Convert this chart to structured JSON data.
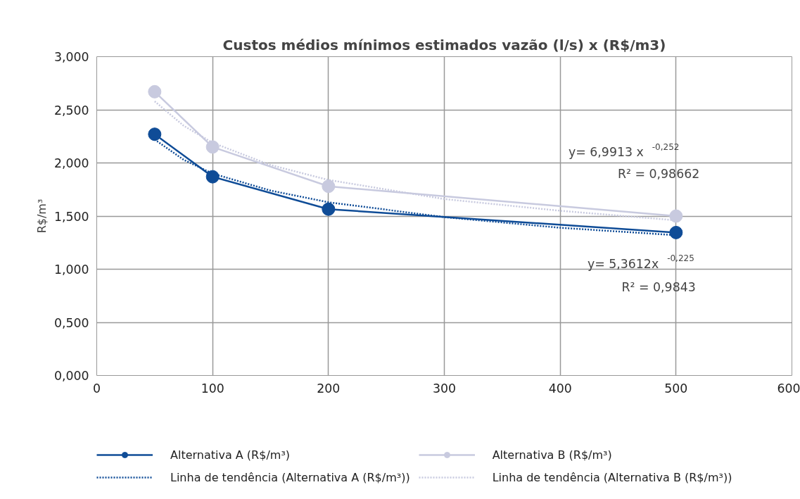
{
  "chart_data": {
    "type": "line",
    "title": "Custos médios mínimos estimados vazão (l/s) x (R$/m3)",
    "ylabel": "R$/m³",
    "x": [
      50,
      100,
      200,
      500
    ],
    "series": [
      {
        "name": "Alternativa A (R$/m³)",
        "color": "#0f4c97",
        "values": [
          2.27,
          1.87,
          1.565,
          1.345
        ],
        "marker": "circle",
        "line_style": "solid"
      },
      {
        "name": "Alternativa B (R$/m³)",
        "color": "#c8cadf",
        "values": [
          2.67,
          2.15,
          1.78,
          1.5
        ],
        "marker": "circle",
        "line_style": "solid"
      },
      {
        "name": "Linha de tendência (Alternativa A (R$/m³))",
        "color": "#0f4c97",
        "x": [
          50,
          75,
          100,
          150,
          200,
          300,
          400,
          500
        ],
        "values": [
          2.22,
          2.03,
          1.9,
          1.74,
          1.63,
          1.49,
          1.39,
          1.32
        ],
        "marker": "none",
        "line_style": "dotted"
      },
      {
        "name": "Linha de tendência (Alternativa B (R$/m³))",
        "color": "#c8cadf",
        "x": [
          50,
          75,
          100,
          150,
          200,
          300,
          400,
          500
        ],
        "values": [
          2.58,
          2.35,
          2.19,
          1.98,
          1.84,
          1.66,
          1.55,
          1.46
        ],
        "marker": "none",
        "line_style": "dotted"
      }
    ],
    "annotations": [
      "y= 6,9913 x $^{-0,252}$",
      "R² = 0,98662",
      "y= 5,3612x $^{-0,225}$",
      "R² = 0,9843"
    ],
    "xlim": [
      0,
      600
    ],
    "xticks": [
      0,
      100,
      200,
      300,
      400,
      500,
      600
    ],
    "ylim": [
      0,
      3
    ],
    "yticks": [
      {
        "value": 0,
        "label": "0,000"
      },
      {
        "value": 0.5,
        "label": "0,500"
      },
      {
        "value": 1,
        "label": "1,000"
      },
      {
        "value": 1.5,
        "label": "1,500"
      },
      {
        "value": 2,
        "label": "2,000"
      },
      {
        "value": 2.5,
        "label": "2,500"
      },
      {
        "value": 3,
        "label": "3,000"
      }
    ],
    "grid": true,
    "legend": "bottom"
  }
}
